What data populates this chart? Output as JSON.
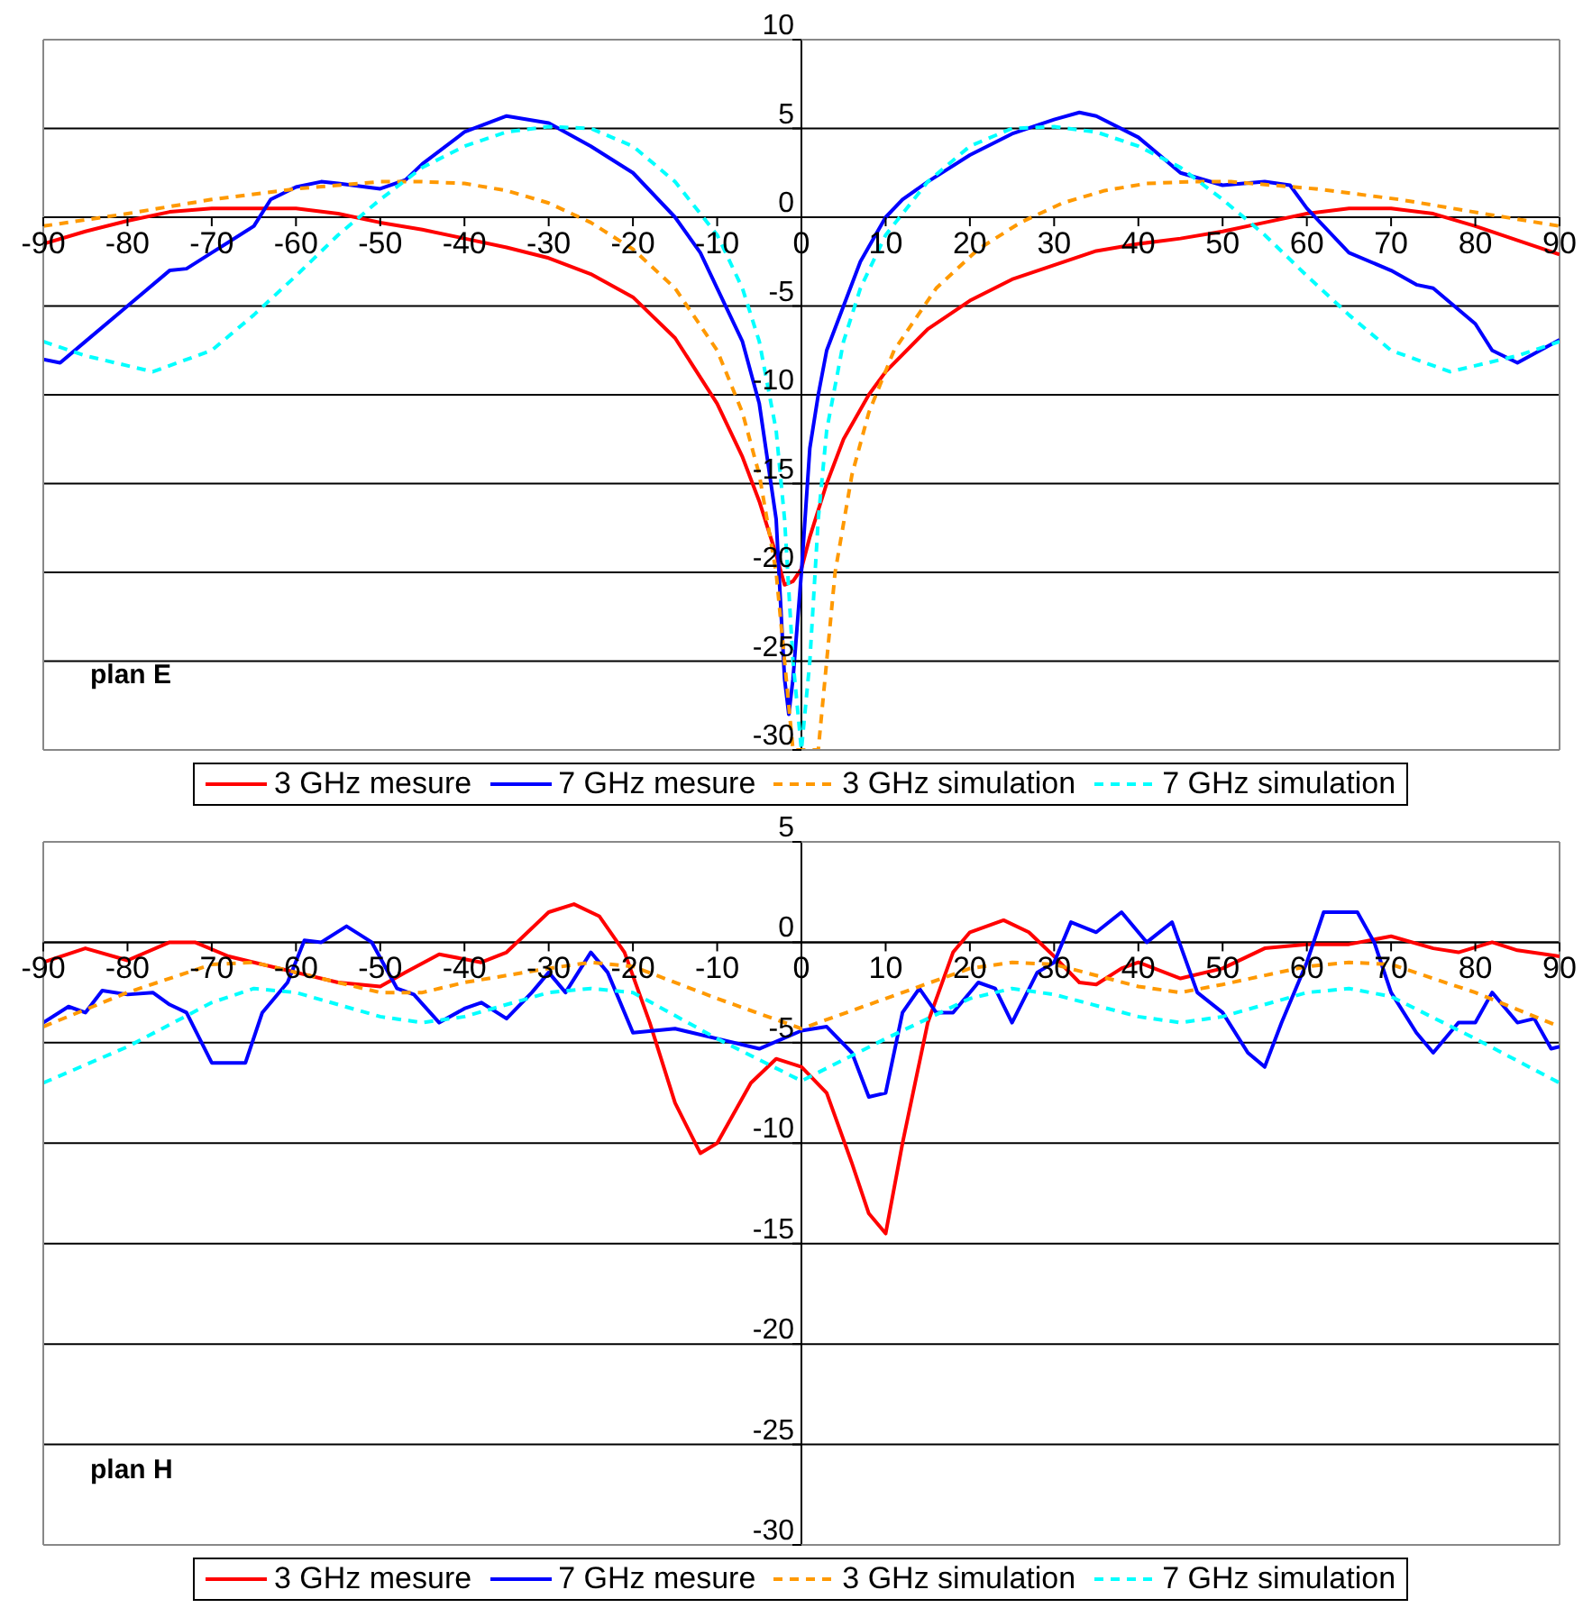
{
  "chart_data": [
    {
      "type": "line",
      "xlim": [
        -90,
        90
      ],
      "ylim": [
        -30,
        10
      ],
      "xticks": [
        -90,
        -80,
        -70,
        -60,
        -50,
        -40,
        -30,
        -20,
        -10,
        0,
        10,
        20,
        30,
        40,
        50,
        60,
        70,
        80,
        90
      ],
      "yticks": [
        -30,
        -25,
        -20,
        -15,
        -10,
        -5,
        0,
        5,
        10
      ],
      "grid": "y",
      "legend": "bottom",
      "marker": "none",
      "annotations": [
        "plan E"
      ],
      "series": [
        {
          "name": "3 GHz mesure",
          "color": "#ff0000",
          "line_style": "solid",
          "x": [
            -90,
            -85,
            -80,
            -75,
            -70,
            -65,
            -60,
            -55,
            -50,
            -45,
            -40,
            -35,
            -30,
            -25,
            -20,
            -15,
            -10,
            -7,
            -5,
            -3,
            -2,
            -1,
            0,
            1,
            3,
            5,
            8,
            10,
            15,
            20,
            25,
            30,
            35,
            40,
            45,
            50,
            55,
            60,
            65,
            70,
            75,
            80,
            85,
            90
          ],
          "values": [
            -1.5,
            -0.8,
            -0.2,
            0.3,
            0.5,
            0.5,
            0.5,
            0.2,
            -0.3,
            -0.7,
            -1.2,
            -1.7,
            -2.3,
            -3.2,
            -4.5,
            -6.8,
            -10.5,
            -13.5,
            -16,
            -19,
            -20.7,
            -20.5,
            -19.8,
            -18,
            -15,
            -12.5,
            -10,
            -8.7,
            -6.3,
            -4.7,
            -3.5,
            -2.7,
            -1.9,
            -1.5,
            -1.2,
            -0.8,
            -0.3,
            0.2,
            0.5,
            0.5,
            0.2,
            -0.5,
            -1.3,
            -2.1
          ]
        },
        {
          "name": "7 GHz mesure",
          "color": "#0000ff",
          "line_style": "solid",
          "x": [
            -90,
            -88,
            -85,
            -80,
            -75,
            -73,
            -70,
            -65,
            -63,
            -60,
            -57,
            -55,
            -50,
            -47,
            -45,
            -40,
            -35,
            -30,
            -25,
            -20,
            -15,
            -12,
            -10,
            -7,
            -5,
            -3,
            -2,
            -1.5,
            -1,
            0,
            1,
            2,
            3,
            5,
            7,
            10,
            12,
            15,
            20,
            25,
            30,
            33,
            35,
            40,
            45,
            50,
            55,
            58,
            60,
            65,
            70,
            73,
            75,
            80,
            82,
            85,
            90
          ],
          "values": [
            -8,
            -8.2,
            -7,
            -5,
            -3,
            -2.9,
            -2,
            -0.5,
            1,
            1.7,
            2,
            1.9,
            1.6,
            2.1,
            3,
            4.8,
            5.7,
            5.3,
            4,
            2.5,
            0,
            -2,
            -4,
            -7,
            -10.5,
            -17,
            -26,
            -28,
            -26,
            -20,
            -13,
            -10,
            -7.5,
            -5,
            -2.5,
            0,
            1,
            2,
            3.5,
            4.7,
            5.5,
            5.9,
            5.7,
            4.5,
            2.5,
            1.8,
            2,
            1.8,
            0.5,
            -2,
            -3,
            -3.8,
            -4,
            -6,
            -7.5,
            -8.2,
            -6.9
          ]
        },
        {
          "name": "3 GHz simulation",
          "color": "#ff9900",
          "line_style": "dashed",
          "x": [
            -90,
            -80,
            -70,
            -60,
            -50,
            -45,
            -40,
            -35,
            -30,
            -25,
            -20,
            -15,
            -10,
            -7,
            -5,
            -3,
            -2,
            -1,
            0.5,
            2,
            3,
            4,
            6,
            8,
            11,
            16,
            21,
            26,
            31,
            36,
            41,
            46,
            51,
            61,
            71,
            81,
            90
          ],
          "values": [
            -0.5,
            0.2,
            1,
            1.6,
            2,
            2,
            1.9,
            1.5,
            0.8,
            -0.3,
            -1.8,
            -4,
            -7.5,
            -11,
            -14.5,
            -20,
            -25,
            -30,
            -30,
            -30,
            -25,
            -20,
            -14.5,
            -11,
            -7.5,
            -4,
            -1.8,
            -0.3,
            0.8,
            1.5,
            1.9,
            2,
            2,
            1.6,
            1,
            0.2,
            -0.5
          ]
        },
        {
          "name": "7 GHz simulation",
          "color": "#00ffff",
          "line_style": "dashed",
          "x": [
            -90,
            -85,
            -77,
            -70,
            -65,
            -60,
            -55,
            -50,
            -45,
            -40,
            -35,
            -30,
            -25,
            -20,
            -15,
            -10,
            -7,
            -5,
            -3,
            -2,
            -1,
            0,
            1,
            2,
            3,
            5,
            7,
            10,
            15,
            20,
            25,
            30,
            35,
            40,
            45,
            50,
            55,
            60,
            65,
            70,
            77,
            85,
            90
          ],
          "values": [
            -7,
            -7.8,
            -8.7,
            -7.5,
            -5.5,
            -3.3,
            -1,
            1,
            2.8,
            4,
            4.8,
            5.1,
            5,
            4,
            2,
            -1,
            -4,
            -7,
            -12,
            -17,
            -25,
            -30,
            -25,
            -17,
            -12,
            -7,
            -4,
            -1,
            2,
            4,
            5,
            5.1,
            4.8,
            4,
            2.8,
            1,
            -1,
            -3.3,
            -5.5,
            -7.5,
            -8.7,
            -7.8,
            -7
          ]
        }
      ]
    },
    {
      "type": "line",
      "xlim": [
        -90,
        90
      ],
      "ylim": [
        -30,
        5
      ],
      "xticks": [
        -90,
        -80,
        -70,
        -60,
        -50,
        -40,
        -30,
        -20,
        -10,
        0,
        10,
        20,
        30,
        40,
        50,
        60,
        70,
        80,
        90
      ],
      "yticks": [
        -30,
        -25,
        -20,
        -15,
        -10,
        -5,
        0,
        5
      ],
      "grid": "y",
      "legend": "bottom",
      "marker": "none",
      "annotations": [
        "plan H"
      ],
      "series": [
        {
          "name": "3 GHz mesure",
          "color": "#ff0000",
          "line_style": "solid",
          "x": [
            -90,
            -85,
            -80,
            -75,
            -72,
            -68,
            -65,
            -60,
            -55,
            -50,
            -47,
            -43,
            -38,
            -35,
            -30,
            -27,
            -24,
            -21,
            -18,
            -15,
            -12,
            -10,
            -6,
            -3,
            0,
            3,
            6,
            8,
            10,
            12,
            15,
            18,
            20,
            24,
            27,
            30,
            33,
            35,
            38,
            40,
            45,
            50,
            55,
            60,
            65,
            70,
            75,
            78,
            82,
            85,
            90
          ],
          "values": [
            -1,
            -0.3,
            -0.9,
            0,
            0,
            -0.7,
            -1,
            -1.5,
            -2,
            -2.2,
            -1.5,
            -0.6,
            -1,
            -0.5,
            1.5,
            1.9,
            1.3,
            -0.5,
            -4,
            -8,
            -10.5,
            -10,
            -7,
            -5.8,
            -6.2,
            -7.5,
            -11,
            -13.5,
            -14.5,
            -10,
            -4,
            -0.5,
            0.5,
            1.1,
            0.5,
            -0.7,
            -2,
            -2.1,
            -1.3,
            -1,
            -1.8,
            -1.3,
            -0.3,
            -0.1,
            -0.1,
            0.3,
            -0.3,
            -0.5,
            0,
            -0.4,
            -0.7
          ]
        },
        {
          "name": "7 GHz mesure",
          "color": "#0000ff",
          "line_style": "solid",
          "x": [
            -90,
            -87,
            -85,
            -83,
            -80,
            -77,
            -75,
            -73,
            -70,
            -66,
            -64,
            -61,
            -59,
            -57,
            -54,
            -51,
            -48,
            -46,
            -43,
            -40,
            -38,
            -35,
            -32,
            -30,
            -28,
            -25,
            -23,
            -20,
            -15,
            -10,
            -5,
            0,
            3,
            6,
            8,
            10,
            12,
            14,
            16,
            18,
            21,
            23,
            25,
            28,
            30,
            32,
            35,
            38,
            41,
            44,
            47,
            50,
            53,
            55,
            57,
            60,
            62,
            66,
            68,
            70,
            73,
            75,
            78,
            80,
            82,
            85,
            87,
            89,
            90
          ],
          "values": [
            -4,
            -3.2,
            -3.5,
            -2.4,
            -2.6,
            -2.5,
            -3.1,
            -3.5,
            -6,
            -6,
            -3.5,
            -2,
            0.1,
            0,
            0.8,
            0,
            -2.3,
            -2.6,
            -4,
            -3.3,
            -3,
            -3.8,
            -2.5,
            -1.5,
            -2.5,
            -0.5,
            -1.5,
            -4.5,
            -4.3,
            -4.8,
            -5.3,
            -4.4,
            -4.2,
            -5.5,
            -7.7,
            -7.5,
            -3.5,
            -2.3,
            -3.5,
            -3.5,
            -2,
            -2.3,
            -4,
            -1.5,
            -1,
            1,
            0.5,
            1.5,
            0,
            1,
            -2.5,
            -3.5,
            -5.5,
            -6.2,
            -4,
            -1,
            1.5,
            1.5,
            0,
            -2.5,
            -4.5,
            -5.5,
            -4,
            -4,
            -2.5,
            -4,
            -3.8,
            -5.3,
            -5.2
          ]
        },
        {
          "name": "3 GHz simulation",
          "color": "#ff9900",
          "line_style": "dashed",
          "x": [
            -90,
            -80,
            -70,
            -65,
            -60,
            -50,
            -45,
            -40,
            -30,
            -25,
            -20,
            -10,
            0,
            10,
            20,
            25,
            30,
            40,
            45,
            50,
            60,
            65,
            70,
            80,
            90
          ],
          "values": [
            -4.2,
            -2.5,
            -1.1,
            -1,
            -1.5,
            -2.5,
            -2.5,
            -2,
            -1.3,
            -1,
            -1.2,
            -2.8,
            -4.3,
            -2.8,
            -1.3,
            -1,
            -1.1,
            -2.2,
            -2.5,
            -2.1,
            -1.2,
            -1,
            -1.1,
            -2.5,
            -4.2
          ]
        },
        {
          "name": "7 GHz simulation",
          "color": "#00ffff",
          "line_style": "dashed",
          "x": [
            -90,
            -80,
            -70,
            -65,
            -60,
            -50,
            -45,
            -40,
            -30,
            -25,
            -20,
            -10,
            0,
            10,
            20,
            25,
            30,
            40,
            45,
            50,
            60,
            65,
            70,
            80,
            90
          ],
          "values": [
            -7,
            -5.2,
            -3,
            -2.3,
            -2.5,
            -3.7,
            -4,
            -3.7,
            -2.5,
            -2.3,
            -2.5,
            -4.8,
            -6.9,
            -4.8,
            -2.8,
            -2.3,
            -2.6,
            -3.7,
            -4,
            -3.7,
            -2.5,
            -2.3,
            -2.7,
            -4.8,
            -7
          ]
        }
      ]
    }
  ]
}
